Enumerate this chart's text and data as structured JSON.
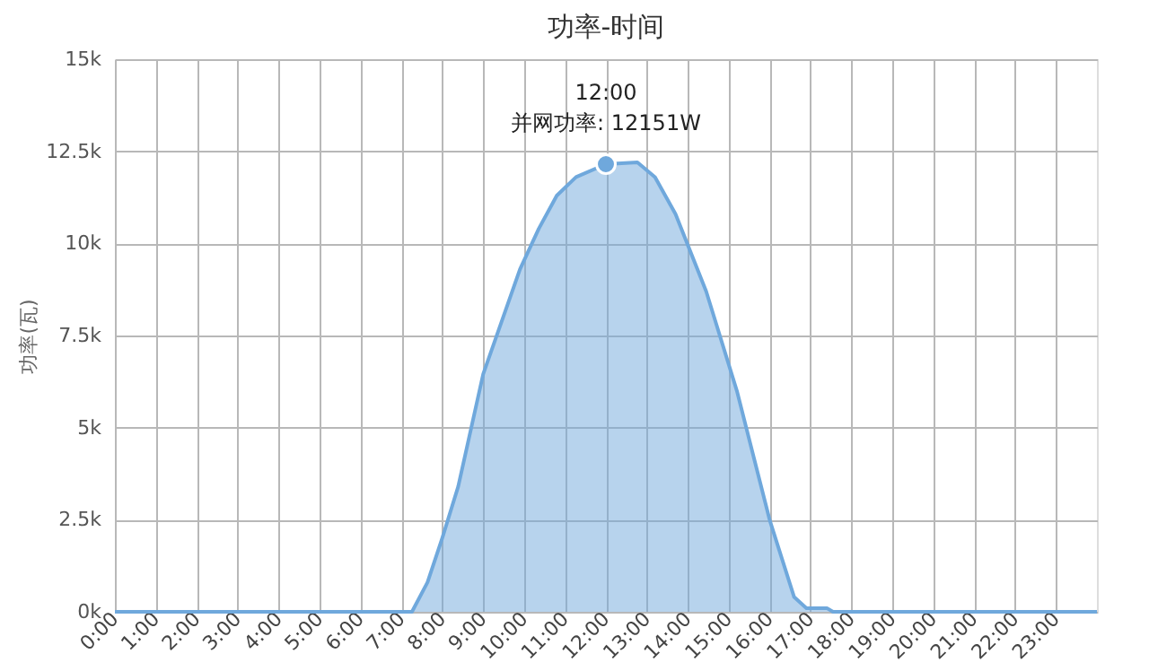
{
  "chart_data": {
    "type": "area",
    "title": "功率-时间",
    "ylabel": "功率(瓦)",
    "x": [
      0,
      1,
      2,
      3,
      4,
      5,
      6,
      7,
      7.26,
      7.64,
      8.0,
      8.39,
      9.0,
      9.3,
      9.9,
      10.36,
      10.8,
      11.27,
      12,
      12.77,
      13.2,
      13.7,
      14.45,
      15.2,
      16.0,
      16.6,
      16.9,
      17.4,
      17.55,
      18,
      19,
      20,
      21,
      22,
      23,
      24
    ],
    "series": [
      {
        "color": "#6fa8dc",
        "values": [
          0,
          0,
          0,
          0,
          0,
          0,
          0,
          0,
          0,
          800,
          2000,
          3400,
          6450,
          7400,
          9300,
          10400,
          11300,
          11800,
          12151,
          12200,
          11800,
          10800,
          8700,
          6000,
          2500,
          400,
          100,
          100,
          0,
          0,
          0,
          0,
          0,
          0,
          0,
          0
        ]
      }
    ],
    "xlim": [
      0,
      24
    ],
    "xticks": [
      {
        "value": 0,
        "label": "0:00"
      },
      {
        "value": 1,
        "label": "1:00"
      },
      {
        "value": 2,
        "label": "2:00"
      },
      {
        "value": 3,
        "label": "3:00"
      },
      {
        "value": 4,
        "label": "4:00"
      },
      {
        "value": 5,
        "label": "5:00"
      },
      {
        "value": 6,
        "label": "6:00"
      },
      {
        "value": 7,
        "label": "7:00"
      },
      {
        "value": 8,
        "label": "8:00"
      },
      {
        "value": 9,
        "label": "9:00"
      },
      {
        "value": 10,
        "label": "10:00"
      },
      {
        "value": 11,
        "label": "11:00"
      },
      {
        "value": 12,
        "label": "12:00"
      },
      {
        "value": 13,
        "label": "13:00"
      },
      {
        "value": 14,
        "label": "14:00"
      },
      {
        "value": 15,
        "label": "15:00"
      },
      {
        "value": 16,
        "label": "16:00"
      },
      {
        "value": 17,
        "label": "17:00"
      },
      {
        "value": 18,
        "label": "18:00"
      },
      {
        "value": 19,
        "label": "19:00"
      },
      {
        "value": 20,
        "label": "20:00"
      },
      {
        "value": 21,
        "label": "21:00"
      },
      {
        "value": 22,
        "label": "22:00"
      },
      {
        "value": 23,
        "label": "23:00"
      }
    ],
    "ylim": [
      0,
      15000
    ],
    "yticks": [
      {
        "value": 0,
        "label": "0k"
      },
      {
        "value": 2500,
        "label": "2.5k"
      },
      {
        "value": 5000,
        "label": "5k"
      },
      {
        "value": 7500,
        "label": "7.5k"
      },
      {
        "value": 10000,
        "label": "10k"
      },
      {
        "value": 12500,
        "label": "12.5k"
      },
      {
        "value": 15000,
        "label": "15k"
      }
    ],
    "grid": true,
    "annotations": [
      {
        "text": "12:00\n并网功率: 12151W",
        "x": 12,
        "y": 12151
      }
    ]
  }
}
